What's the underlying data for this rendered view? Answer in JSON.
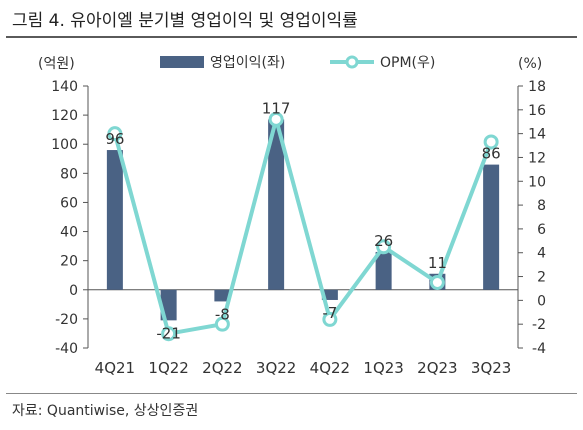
{
  "figure_title": "그림 4. 유아이엘 분기별 영업이익 및 영업이익률",
  "source": "자료: Quantiwise, 상상인증권",
  "colors": {
    "bar": "#4a6284",
    "line": "#7fd7d2",
    "axis": "#555555"
  },
  "chart_data": {
    "type": "bar",
    "categories": [
      "4Q21",
      "1Q22",
      "2Q22",
      "3Q22",
      "4Q22",
      "1Q23",
      "2Q23",
      "3Q23"
    ],
    "series": [
      {
        "name": "영업이익(좌)",
        "type": "bar",
        "axis": "left",
        "values": [
          96,
          -21,
          -8,
          117,
          -7,
          26,
          11,
          86
        ],
        "labels": [
          "96",
          "-21",
          "-8",
          "117",
          "-7",
          "26",
          "11",
          "86"
        ]
      },
      {
        "name": "OPM(우)",
        "type": "line",
        "axis": "right",
        "values": [
          14.0,
          -2.8,
          -2.0,
          15.2,
          -1.6,
          4.5,
          1.5,
          13.3
        ]
      }
    ],
    "y_left": {
      "unit": "(억원)",
      "min": -40,
      "max": 140,
      "ticks": [
        -40,
        -20,
        0,
        20,
        40,
        60,
        80,
        100,
        120,
        140
      ]
    },
    "y_right": {
      "unit": "(%)",
      "min": -4,
      "max": 18,
      "ticks": [
        -4,
        -2,
        0,
        2,
        4,
        6,
        8,
        10,
        12,
        14,
        16,
        18
      ]
    },
    "grid": false,
    "legend_position": "top"
  }
}
